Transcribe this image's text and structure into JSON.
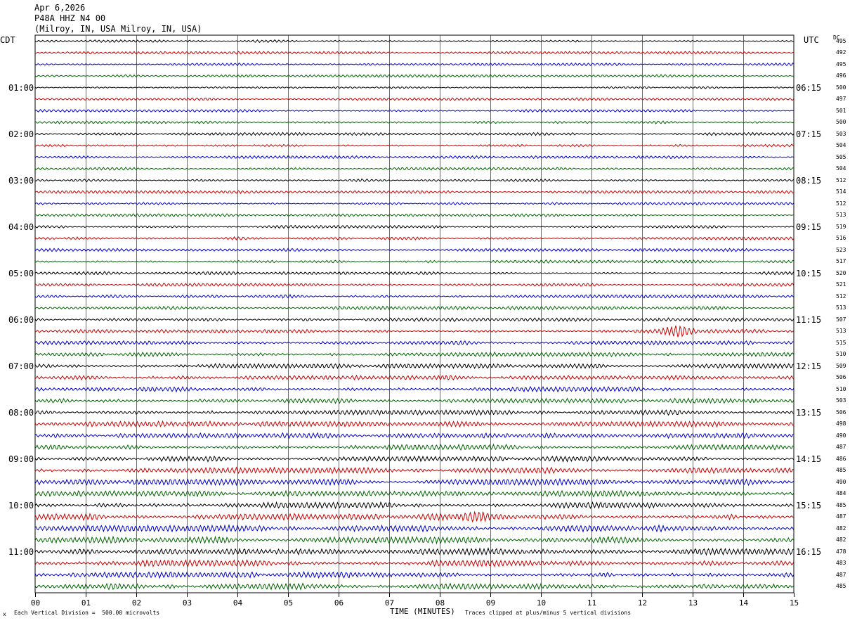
{
  "header": {
    "date": "Apr 6,2026",
    "station": "P48A HHZ N4 00",
    "location": "(Milroy, IN, USA Milroy, IN, USA)"
  },
  "axes": {
    "left_zone": "CDT",
    "right_zone": "UTC",
    "dc_label": "DC",
    "xlabel": "TIME (MINUTES)",
    "footnote_left": "Each Vertical Division =  500.00 microvolts",
    "footnote_right": "Traces clipped at plus/minus 5 vertical divisions",
    "corner_mark": "x"
  },
  "colors": {
    "trace_cycle": [
      "#000000",
      "#cc0000",
      "#0000cc",
      "#006600"
    ],
    "grid": "#000000"
  },
  "chart_data": {
    "type": "line",
    "description_kind": "helicorder",
    "x_ticks": [
      "00",
      "01",
      "02",
      "03",
      "04",
      "05",
      "06",
      "07",
      "08",
      "09",
      "10",
      "11",
      "12",
      "13",
      "14",
      "15"
    ],
    "xlim": [
      0,
      15
    ],
    "lines_per_hour": 4,
    "local_hour_labels": [
      "01:00",
      "02:00",
      "03:00",
      "04:00",
      "05:00",
      "06:00",
      "07:00",
      "08:00",
      "09:00",
      "10:00",
      "11:00"
    ],
    "utc_hour_labels": [
      "06:15",
      "07:15",
      "08:15",
      "09:15",
      "10:15",
      "11:15",
      "12:15",
      "13:15",
      "14:15",
      "15:15",
      "16:15"
    ],
    "dc_offsets": [
      "495",
      "492",
      "495",
      "496",
      "500",
      "497",
      "501",
      "500",
      "503",
      "504",
      "505",
      "504",
      "512",
      "514",
      "512",
      "513",
      "519",
      "516",
      "523",
      "517",
      "520",
      "521",
      "512",
      "513",
      "507",
      "513",
      "515",
      "510",
      "509",
      "506",
      "510",
      "503",
      "506",
      "498",
      "490",
      "487",
      "486",
      "485",
      "490",
      "484",
      "485",
      "487",
      "482",
      "482",
      "478",
      "483",
      "487",
      "485"
    ],
    "amplitude": [
      0.35,
      0.35,
      0.35,
      0.35,
      0.35,
      0.35,
      0.35,
      0.35,
      0.38,
      0.38,
      0.38,
      0.38,
      0.38,
      0.38,
      0.38,
      0.38,
      0.4,
      0.4,
      0.4,
      0.42,
      0.42,
      0.42,
      0.45,
      0.45,
      0.5,
      0.5,
      0.55,
      0.55,
      0.6,
      0.6,
      0.65,
      0.65,
      0.65,
      0.7,
      0.7,
      0.7,
      0.7,
      0.75,
      0.8,
      0.8,
      0.8,
      0.85,
      0.85,
      0.85,
      0.85,
      0.85,
      0.8,
      0.8
    ],
    "events": [
      {
        "line": 25,
        "minute": 12.7,
        "amplitude": 1.8
      },
      {
        "line": 41,
        "minute": 8.8,
        "amplitude": 1.2
      }
    ]
  }
}
